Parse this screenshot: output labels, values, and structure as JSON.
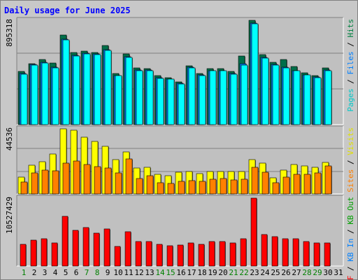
{
  "chart_data": [
    {
      "type": "bar",
      "title": "Daily usage for June 2025",
      "categories": [
        "1",
        "2",
        "3",
        "4",
        "5",
        "6",
        "7",
        "8",
        "9",
        "10",
        "11",
        "12",
        "13",
        "14",
        "15",
        "16",
        "17",
        "18",
        "19",
        "20",
        "21",
        "22",
        "23",
        "24",
        "25",
        "26",
        "27",
        "28",
        "29",
        "30",
        "31"
      ],
      "y_tick_label": "895318",
      "series": [
        {
          "name": "Hits",
          "color": "#006f4a",
          "values": [
            480000,
            552000,
            588000,
            554000,
            808000,
            649000,
            667000,
            655000,
            712000,
            459000,
            637000,
            512000,
            508000,
            445000,
            425000,
            387000,
            533000,
            464000,
            508000,
            508000,
            479000,
            619000,
            943000,
            635000,
            563000,
            588000,
            524000,
            467000,
            443000,
            514000,
            0
          ]
        },
        {
          "name": "Files",
          "color": "#0080ff",
          "values": [
            459000,
            543000,
            566000,
            518000,
            774000,
            627000,
            648000,
            637000,
            679000,
            446000,
            616000,
            494000,
            494000,
            427000,
            414000,
            374000,
            519000,
            450000,
            490000,
            490000,
            460000,
            548000,
            919000,
            609000,
            546000,
            522000,
            490000,
            452000,
            430000,
            494000,
            0
          ]
        },
        {
          "name": "Pages",
          "color": "#00ffff",
          "values": [
            455000,
            540000,
            560000,
            510000,
            768000,
            620000,
            640000,
            630000,
            670000,
            440000,
            608000,
            490000,
            490000,
            420000,
            410000,
            370000,
            510000,
            445000,
            485000,
            485000,
            455000,
            540000,
            910000,
            600000,
            540000,
            515000,
            485000,
            448000,
            425000,
            490000,
            0
          ]
        }
      ],
      "legend_left": "Pages / Files / Hits"
    },
    {
      "type": "bar",
      "categories": [
        "1",
        "2",
        "3",
        "4",
        "5",
        "6",
        "7",
        "8",
        "9",
        "10",
        "11",
        "12",
        "13",
        "14",
        "15",
        "16",
        "17",
        "18",
        "19",
        "20",
        "21",
        "22",
        "23",
        "24",
        "25",
        "26",
        "27",
        "28",
        "29",
        "30",
        "31"
      ],
      "y_tick_label": "44536",
      "series": [
        {
          "name": "Visits",
          "color": "#ffff00",
          "values": [
            15000,
            25500,
            28500,
            35000,
            57500,
            56000,
            49900,
            46500,
            42100,
            30000,
            37400,
            23000,
            23500,
            17100,
            15900,
            18900,
            20000,
            18200,
            20000,
            19800,
            19800,
            19800,
            30000,
            27000,
            14200,
            20800,
            26100,
            25000,
            23800,
            28000,
            0
          ]
        },
        {
          "name": "Sites",
          "color": "#ff8000",
          "values": [
            10500,
            18800,
            21000,
            20600,
            27400,
            28800,
            26000,
            24300,
            23000,
            18500,
            30800,
            13700,
            15900,
            9700,
            9500,
            11000,
            12000,
            11100,
            12900,
            13700,
            12600,
            12900,
            23400,
            19300,
            9800,
            14600,
            17100,
            17600,
            18500,
            24500,
            0
          ]
        }
      ],
      "legend_left": "Sites / Visits"
    },
    {
      "type": "bar",
      "categories": [
        "1",
        "2",
        "3",
        "4",
        "5",
        "6",
        "7",
        "8",
        "9",
        "10",
        "11",
        "12",
        "13",
        "14",
        "15",
        "16",
        "17",
        "18",
        "19",
        "20",
        "21",
        "22",
        "23",
        "24",
        "25",
        "26",
        "27",
        "28",
        "29",
        "30",
        "31"
      ],
      "y_tick_label": "10527429",
      "series": [
        {
          "name": "KB F",
          "color": "#ff0000",
          "values": [
            3900000,
            4600000,
            4950000,
            4150000,
            8900000,
            6400000,
            6900000,
            5900000,
            6700000,
            3550000,
            6200000,
            4450000,
            4450000,
            3900000,
            3650000,
            3750000,
            4150000,
            3900000,
            4450000,
            4450000,
            4200000,
            4950000,
            12200000,
            5700000,
            5300000,
            4850000,
            4850000,
            4350000,
            4200000,
            4200000,
            0
          ]
        }
      ],
      "legend_left": "KB F / KB In / KB Out"
    }
  ],
  "right_labels": [
    {
      "parts": [
        {
          "text": "Pages",
          "color": "#00c8c8"
        },
        {
          "text": " / ",
          "color": "#000000"
        },
        {
          "text": "Files",
          "color": "#0080ff"
        },
        {
          "text": " / ",
          "color": "#000000"
        },
        {
          "text": "Hits",
          "color": "#008040"
        }
      ]
    },
    {
      "parts": [
        {
          "text": "Sites",
          "color": "#ff8000"
        },
        {
          "text": " / ",
          "color": "#000000"
        },
        {
          "text": "Visits",
          "color": "#e0e000"
        }
      ]
    },
    {
      "parts": [
        {
          "text": "KB F",
          "color": "#ff0000"
        },
        {
          "text": " / ",
          "color": "#000000"
        },
        {
          "text": "KB In",
          "color": "#0080ff"
        },
        {
          "text": " / ",
          "color": "#000000"
        },
        {
          "text": "KB Out",
          "color": "#00a000"
        }
      ]
    }
  ],
  "x_labels": [
    {
      "text": "1",
      "color": "#008000"
    },
    {
      "text": "2",
      "color": "#000000"
    },
    {
      "text": "3",
      "color": "#000000"
    },
    {
      "text": "4",
      "color": "#000000"
    },
    {
      "text": "5",
      "color": "#000000"
    },
    {
      "text": "6",
      "color": "#000000"
    },
    {
      "text": "7",
      "color": "#008000"
    },
    {
      "text": "8",
      "color": "#008000"
    },
    {
      "text": "9",
      "color": "#000000"
    },
    {
      "text": "10",
      "color": "#000000"
    },
    {
      "text": "11",
      "color": "#000000"
    },
    {
      "text": "12",
      "color": "#000000"
    },
    {
      "text": "13",
      "color": "#000000"
    },
    {
      "text": "14",
      "color": "#008000"
    },
    {
      "text": "15",
      "color": "#008000"
    },
    {
      "text": "16",
      "color": "#000000"
    },
    {
      "text": "17",
      "color": "#000000"
    },
    {
      "text": "18",
      "color": "#000000"
    },
    {
      "text": "19",
      "color": "#000000"
    },
    {
      "text": "20",
      "color": "#000000"
    },
    {
      "text": "21",
      "color": "#008000"
    },
    {
      "text": "22",
      "color": "#008000"
    },
    {
      "text": "23",
      "color": "#000000"
    },
    {
      "text": "24",
      "color": "#000000"
    },
    {
      "text": "25",
      "color": "#000000"
    },
    {
      "text": "26",
      "color": "#000000"
    },
    {
      "text": "27",
      "color": "#000000"
    },
    {
      "text": "28",
      "color": "#008000"
    },
    {
      "text": "29",
      "color": "#008000"
    },
    {
      "text": "30",
      "color": "#000000"
    },
    {
      "text": "31",
      "color": "#000000"
    }
  ],
  "colors": {
    "title": "#0000ff",
    "panel_bg": "#c0c0c0",
    "frame_bg": "#c8c8c8"
  }
}
